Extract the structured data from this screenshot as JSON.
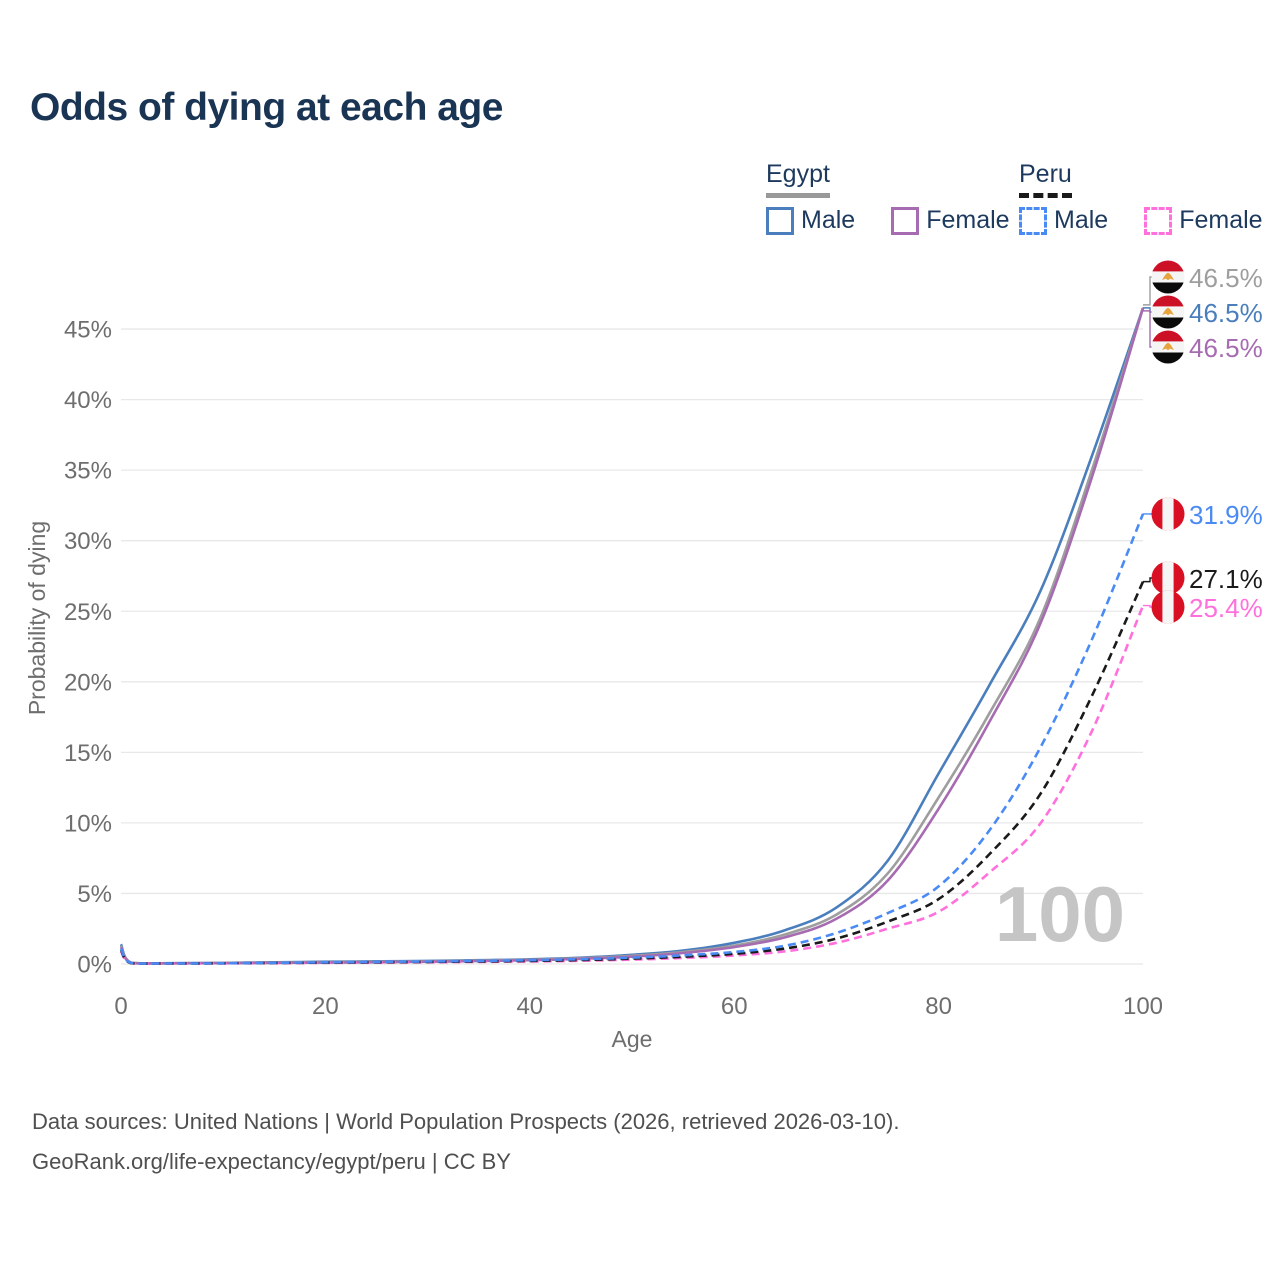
{
  "page": {
    "title": "Odds of dying at each age"
  },
  "legend": {
    "groups": [
      {
        "id": "egypt",
        "label": "Egypt",
        "line_style": "solid",
        "line_color": "#999999",
        "items": [
          {
            "id": "male",
            "label": "Male",
            "color": "#4a7ebc",
            "dashed": false
          },
          {
            "id": "female",
            "label": "Female",
            "color": "#a66bb0",
            "dashed": false
          }
        ]
      },
      {
        "id": "peru",
        "label": "Peru",
        "line_style": "dashed",
        "line_color": "#1a1a1a",
        "items": [
          {
            "id": "male",
            "label": "Male",
            "color": "#4a8af4",
            "dashed": true
          },
          {
            "id": "female",
            "label": "Female",
            "color": "#ff70dd",
            "dashed": true
          }
        ]
      }
    ]
  },
  "watermark": "100",
  "chart_data": {
    "type": "line",
    "title": "Odds of dying at each age",
    "xlabel": "Age",
    "ylabel": "Probability of dying",
    "x_ticks": [
      "0",
      "20",
      "40",
      "60",
      "80",
      "100"
    ],
    "y_ticks": [
      "0%",
      "5%",
      "10%",
      "15%",
      "20%",
      "25%",
      "30%",
      "35%",
      "40%",
      "45%"
    ],
    "xlim": [
      0,
      100
    ],
    "ylim": [
      0,
      47
    ],
    "grid": "horizontal-only",
    "legend_position": "top-right",
    "ages": [
      0,
      1,
      5,
      10,
      15,
      20,
      25,
      30,
      35,
      40,
      45,
      50,
      55,
      60,
      65,
      70,
      75,
      80,
      85,
      90,
      95,
      100
    ],
    "series": [
      {
        "id": "egypt-overall",
        "country": "Egypt",
        "sex": "overall",
        "color": "#9e9e9e",
        "label_color": "#9e9e9e",
        "dashed": false,
        "flag": "egypt",
        "end_label": "46.5%",
        "values": [
          1.3,
          0.09,
          0.05,
          0.07,
          0.1,
          0.13,
          0.16,
          0.19,
          0.24,
          0.3,
          0.41,
          0.58,
          0.85,
          1.3,
          2.1,
          3.5,
          6.4,
          11.8,
          17.8,
          24.6,
          35.0,
          46.5
        ]
      },
      {
        "id": "egypt-male",
        "country": "Egypt",
        "sex": "male",
        "color": "#4a7ebc",
        "label_color": "#4a7ebc",
        "dashed": false,
        "flag": "egypt",
        "end_label": "46.5%",
        "values": [
          1.4,
          0.1,
          0.06,
          0.08,
          0.12,
          0.16,
          0.19,
          0.22,
          0.27,
          0.33,
          0.45,
          0.65,
          0.95,
          1.5,
          2.4,
          4.0,
          7.3,
          13.5,
          19.8,
          26.5,
          36.0,
          46.5
        ]
      },
      {
        "id": "egypt-female",
        "country": "Egypt",
        "sex": "female",
        "color": "#a66bb0",
        "label_color": "#a66bb0",
        "dashed": false,
        "flag": "egypt",
        "end_label": "46.5%",
        "values": [
          1.2,
          0.08,
          0.05,
          0.06,
          0.08,
          0.1,
          0.13,
          0.16,
          0.21,
          0.27,
          0.37,
          0.52,
          0.78,
          1.2,
          1.9,
          3.2,
          5.9,
          11.0,
          17.2,
          24.2,
          34.5,
          46.5
        ]
      },
      {
        "id": "peru-male",
        "country": "Peru",
        "sex": "male",
        "color": "#4a8af4",
        "label_color": "#4a8af4",
        "dashed": true,
        "flag": "peru",
        "end_label": "31.9%",
        "values": [
          1.1,
          0.07,
          0.04,
          0.05,
          0.08,
          0.12,
          0.15,
          0.18,
          0.22,
          0.27,
          0.34,
          0.45,
          0.62,
          0.85,
          1.3,
          2.2,
          3.6,
          5.5,
          9.5,
          15.4,
          23.0,
          31.9
        ]
      },
      {
        "id": "peru-overall",
        "country": "Peru",
        "sex": "overall",
        "color": "#1a1a1a",
        "label_color": "#1a1a1a",
        "dashed": true,
        "flag": "peru",
        "end_label": "27.1%",
        "values": [
          1.0,
          0.06,
          0.04,
          0.05,
          0.07,
          0.1,
          0.12,
          0.15,
          0.18,
          0.22,
          0.28,
          0.38,
          0.52,
          0.72,
          1.1,
          1.8,
          3.0,
          4.6,
          7.8,
          12.1,
          19.0,
          27.1
        ]
      },
      {
        "id": "peru-female",
        "country": "Peru",
        "sex": "female",
        "color": "#ff70dd",
        "label_color": "#ff70dd",
        "dashed": true,
        "flag": "peru",
        "end_label": "25.4%",
        "values": [
          0.9,
          0.06,
          0.03,
          0.04,
          0.06,
          0.08,
          0.1,
          0.12,
          0.15,
          0.18,
          0.23,
          0.31,
          0.43,
          0.6,
          0.9,
          1.5,
          2.5,
          3.7,
          6.5,
          10.0,
          16.5,
          25.4
        ]
      }
    ]
  },
  "footer": {
    "line1": "Data sources: United Nations | World Population Prospects (2026, retrieved 2026-03-10).",
    "line2": "GeoRank.org/life-expectancy/egypt/peru | CC BY"
  }
}
